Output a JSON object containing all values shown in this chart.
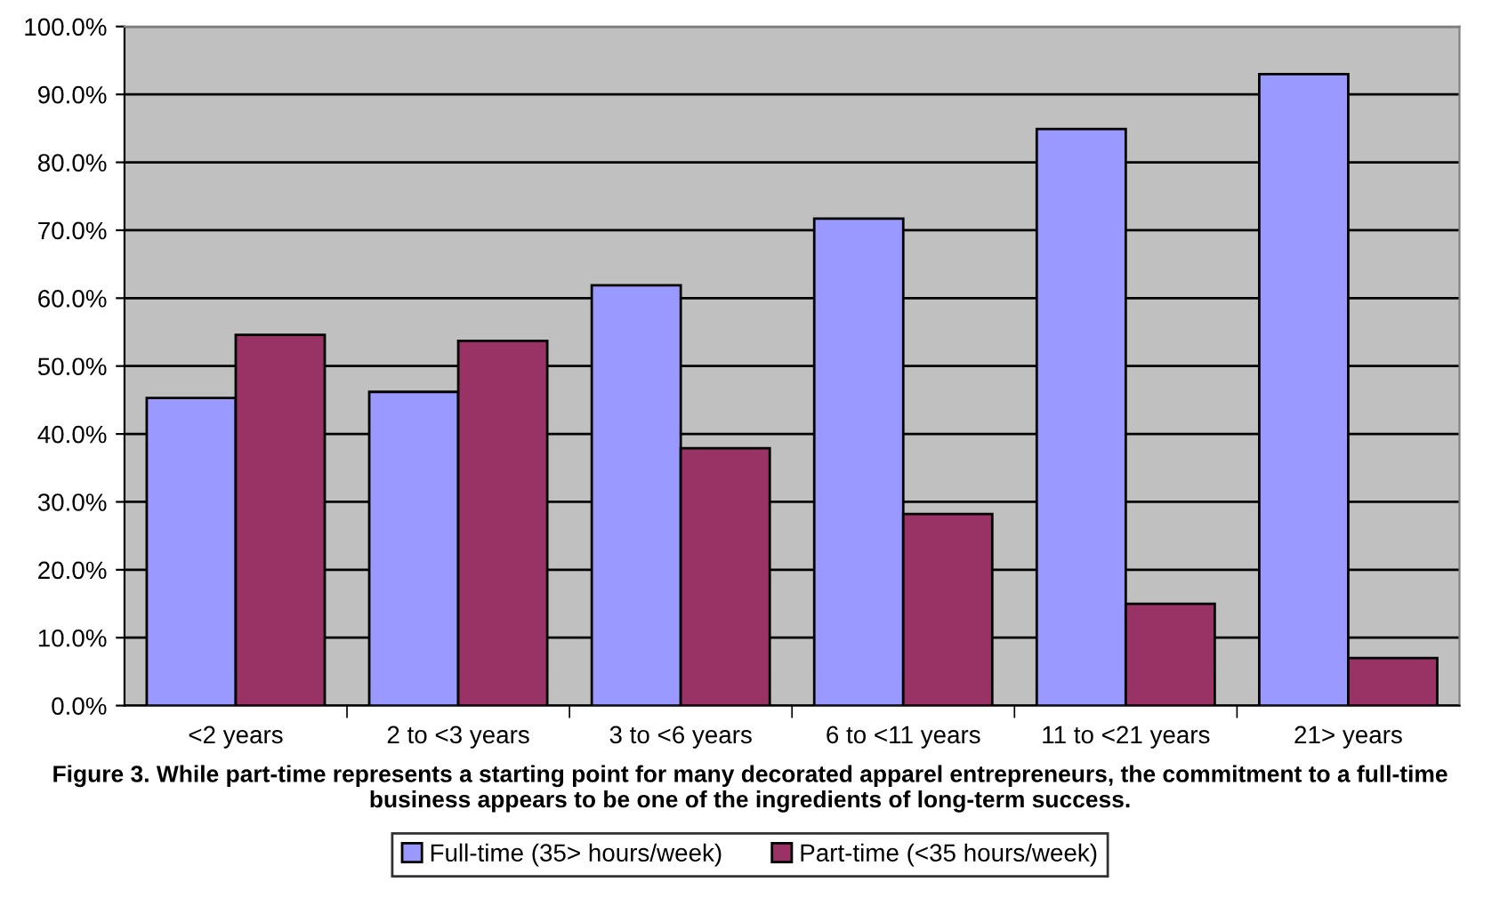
{
  "chart_data": {
    "type": "bar",
    "categories": [
      "<2 years",
      "2 to <3 years",
      "3 to <6 years",
      "6 to <11 years",
      "11 to <21 years",
      "21> years"
    ],
    "series": [
      {
        "name": "Full-time (35> hours/week)",
        "color": "#9999ff",
        "values": [
          45.3,
          46.2,
          61.9,
          71.7,
          84.9,
          93.0
        ]
      },
      {
        "name": "Part-time (<35 hours/week)",
        "color": "#993366",
        "values": [
          54.6,
          53.7,
          37.9,
          28.2,
          15.0,
          7.0
        ]
      }
    ],
    "ylim": [
      0,
      100
    ],
    "yticks": [
      {
        "value": 0,
        "label": "0.0%"
      },
      {
        "value": 10,
        "label": "10.0%"
      },
      {
        "value": 20,
        "label": "20.0%"
      },
      {
        "value": 30,
        "label": "30.0%"
      },
      {
        "value": 40,
        "label": "40.0%"
      },
      {
        "value": 50,
        "label": "50.0%"
      },
      {
        "value": 60,
        "label": "60.0%"
      },
      {
        "value": 70,
        "label": "70.0%"
      },
      {
        "value": 80,
        "label": "80.0%"
      },
      {
        "value": 90,
        "label": "90.0%"
      },
      {
        "value": 100,
        "label": "100.0%"
      }
    ],
    "grid": "y",
    "legend": "bottom",
    "annotations": [
      "Figure 3. While part-time represents a starting point for many decorated apparel entrepreneurs, the commitment to a full-time business appears to be one of the ingredients of long-term success."
    ]
  }
}
